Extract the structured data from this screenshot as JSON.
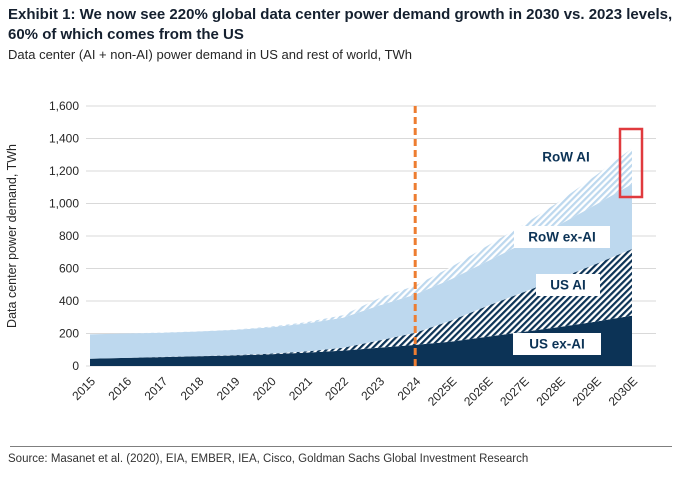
{
  "header": {
    "title_line1": "Exhibit 1: We now see 220% global data center power demand growth in 2030 vs. 2023 levels,",
    "title_line2": "60% of which comes from the US",
    "subtitle": "Data center (AI + non-AI) power demand in US and rest of world, TWh"
  },
  "footer": {
    "source": "Source: Masanet et al. (2020), EIA, EMBER, IEA, Cisco, Goldman Sachs Global Investment Research"
  },
  "chart_data": {
    "type": "area",
    "stacked": true,
    "title": "",
    "xlabel": "",
    "ylabel": "Data center power demand, TWh",
    "ylim": [
      0,
      1600
    ],
    "ytick_step": 200,
    "grid": true,
    "legend_position": "inline-labels",
    "x": [
      "2015",
      "2016",
      "2017",
      "2018",
      "2019",
      "2020",
      "2021",
      "2022",
      "2023",
      "2024",
      "2025E",
      "2026E",
      "2027E",
      "2028E",
      "2029E",
      "2030E"
    ],
    "series": [
      {
        "name": "US ex-AI",
        "style": "solid-navy",
        "values": [
          45,
          50,
          55,
          60,
          65,
          72,
          82,
          95,
          112,
          130,
          150,
          180,
          210,
          240,
          273,
          310
        ]
      },
      {
        "name": "US AI",
        "style": "hatch-navy",
        "values": [
          0,
          0,
          1,
          1,
          2,
          4,
          8,
          17,
          45,
          75,
          130,
          190,
          245,
          300,
          355,
          410
        ]
      },
      {
        "name": "RoW ex-AI",
        "style": "solid-lightblue",
        "values": [
          150,
          150,
          149,
          151,
          155,
          162,
          172,
          185,
          215,
          235,
          255,
          275,
          300,
          330,
          365,
          400
        ]
      },
      {
        "name": "RoW AI",
        "style": "hatch-lightblue",
        "values": [
          0,
          0,
          1,
          1,
          2,
          4,
          8,
          15,
          45,
          55,
          75,
          95,
          115,
          145,
          180,
          220
        ]
      }
    ],
    "annotations": {
      "forecast_divider": {
        "x": "2024",
        "style": "dashed-vertical-line",
        "color": "#ED7D31"
      },
      "highlight_box": {
        "target": "RoW AI 2030E",
        "shape": "red-rectangle",
        "color": "#E03A3E"
      }
    }
  },
  "colors": {
    "navy": "#0C3356",
    "light_blue": "#BDD8EE",
    "orange": "#ED7D31",
    "red": "#E03A3E",
    "gridline": "#D9D9D9",
    "title_text": "#15202F",
    "body_text": "#262626"
  }
}
